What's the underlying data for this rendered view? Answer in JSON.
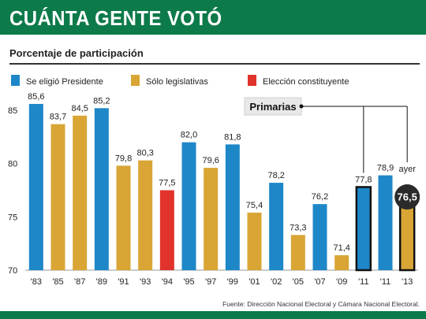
{
  "header": {
    "title": "CUÁNTA GENTE VOTÓ",
    "subtitle": "Porcentaje de participación"
  },
  "footer": {
    "source": "Fuente: Dirección Nacional Electoral y Cámara Nacional Electoral."
  },
  "colors": {
    "banner": "#0d7a4a",
    "presidente": "#1e87c8",
    "legislativas": "#d9a535",
    "constituyente": "#e0332b"
  },
  "chart_data": {
    "type": "bar",
    "ylim": [
      70,
      87
    ],
    "yticks": [
      70,
      75,
      80,
      85
    ],
    "legend": [
      {
        "key": "presidente",
        "label": "Se eligió Presidente"
      },
      {
        "key": "legislativas",
        "label": "Sólo legislativas"
      },
      {
        "key": "constituyente",
        "label": "Elección constituyente"
      }
    ],
    "categories": [
      "'83",
      "'85",
      "'87",
      "'89",
      "'91",
      "'93",
      "'94",
      "'95",
      "'97",
      "'99",
      "'01",
      "'02",
      "'05",
      "'07",
      "'09",
      "'11",
      "'11",
      "'13"
    ],
    "values": [
      85.6,
      83.7,
      84.5,
      85.2,
      79.8,
      80.3,
      77.5,
      82.0,
      79.6,
      81.8,
      75.4,
      78.2,
      73.3,
      76.2,
      71.4,
      77.8,
      78.9,
      76.5
    ],
    "value_labels": [
      "85,6",
      "83,7",
      "84,5",
      "85,2",
      "79,8",
      "80,3",
      "77,5",
      "82,0",
      "79,6",
      "81,8",
      "75,4",
      "78,2",
      "73,3",
      "76,2",
      "71,4",
      "77,8",
      "78,9",
      "76,5"
    ],
    "kinds": [
      "presidente",
      "legislativas",
      "legislativas",
      "presidente",
      "legislativas",
      "legislativas",
      "constituyente",
      "presidente",
      "legislativas",
      "presidente",
      "legislativas",
      "presidente",
      "legislativas",
      "presidente",
      "legislativas",
      "presidente",
      "presidente",
      "legislativas"
    ],
    "primarias_bars": [
      15,
      17
    ],
    "highlight_bar": 17,
    "annotations": {
      "primarias": "Primarias",
      "ayer": "ayer"
    }
  }
}
